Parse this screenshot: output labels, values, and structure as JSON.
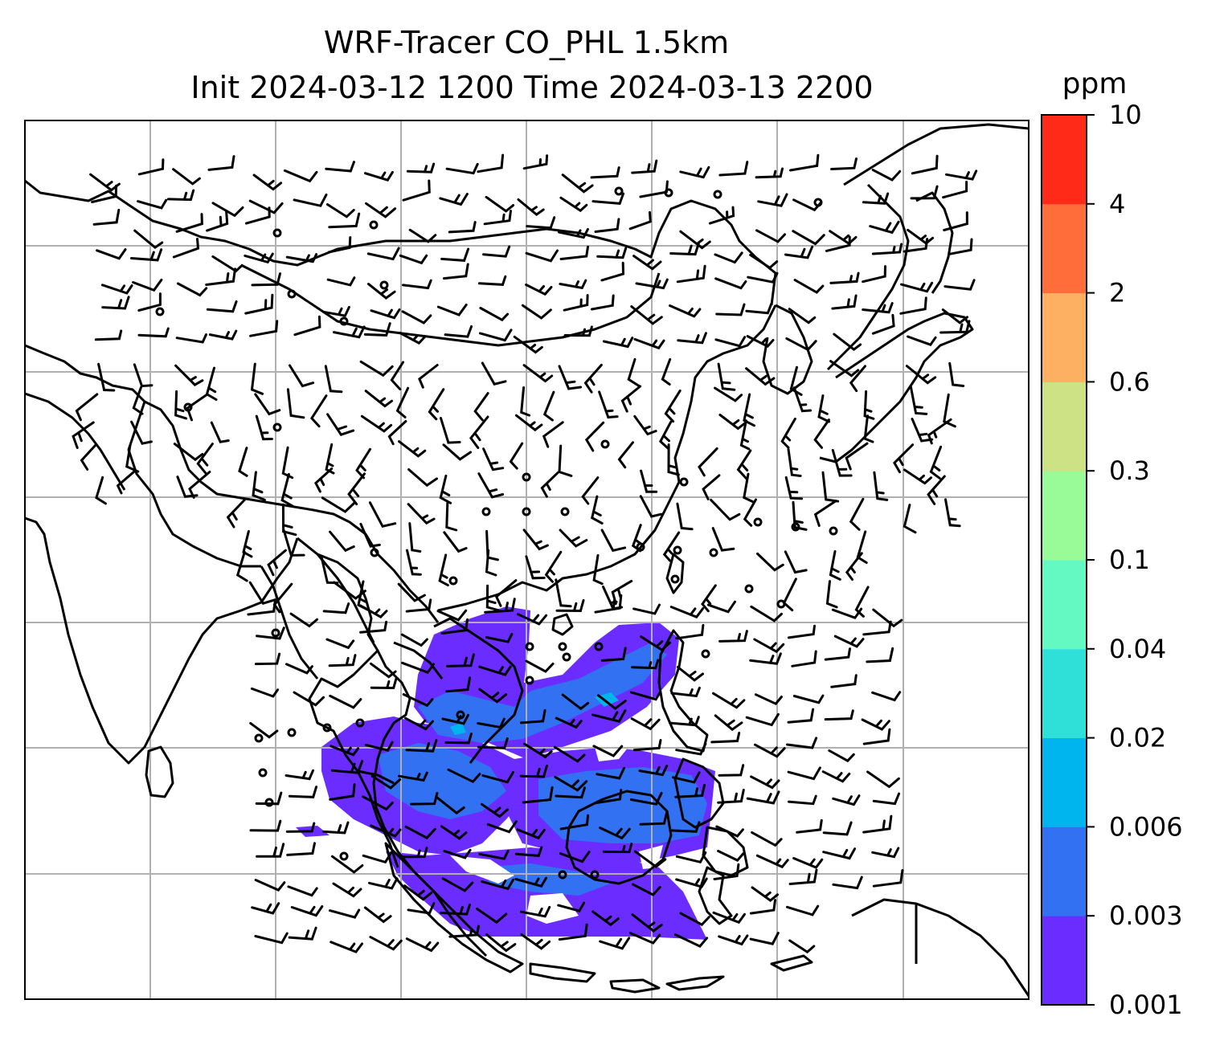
{
  "title": {
    "line1": "WRF-Tracer CO_PHL 1.5km",
    "line2": "Init 2024-03-12 1200 Time 2024-03-13 2200"
  },
  "colorbar": {
    "unit": "ppm",
    "levels": [
      "0.001",
      "0.003",
      "0.006",
      "0.02",
      "0.04",
      "0.1",
      "0.3",
      "0.6",
      "2",
      "4",
      "10"
    ],
    "colors": [
      "#6a2cff",
      "#3272f2",
      "#00b4ee",
      "#2ee0d8",
      "#64f8c2",
      "#98fb98",
      "#cde284",
      "#fdb062",
      "#ff6e3a",
      "#ff2a18"
    ]
  },
  "map": {
    "gridlines": true,
    "coastline_color": "#000000",
    "wind_barbs_color": "#000000"
  }
}
